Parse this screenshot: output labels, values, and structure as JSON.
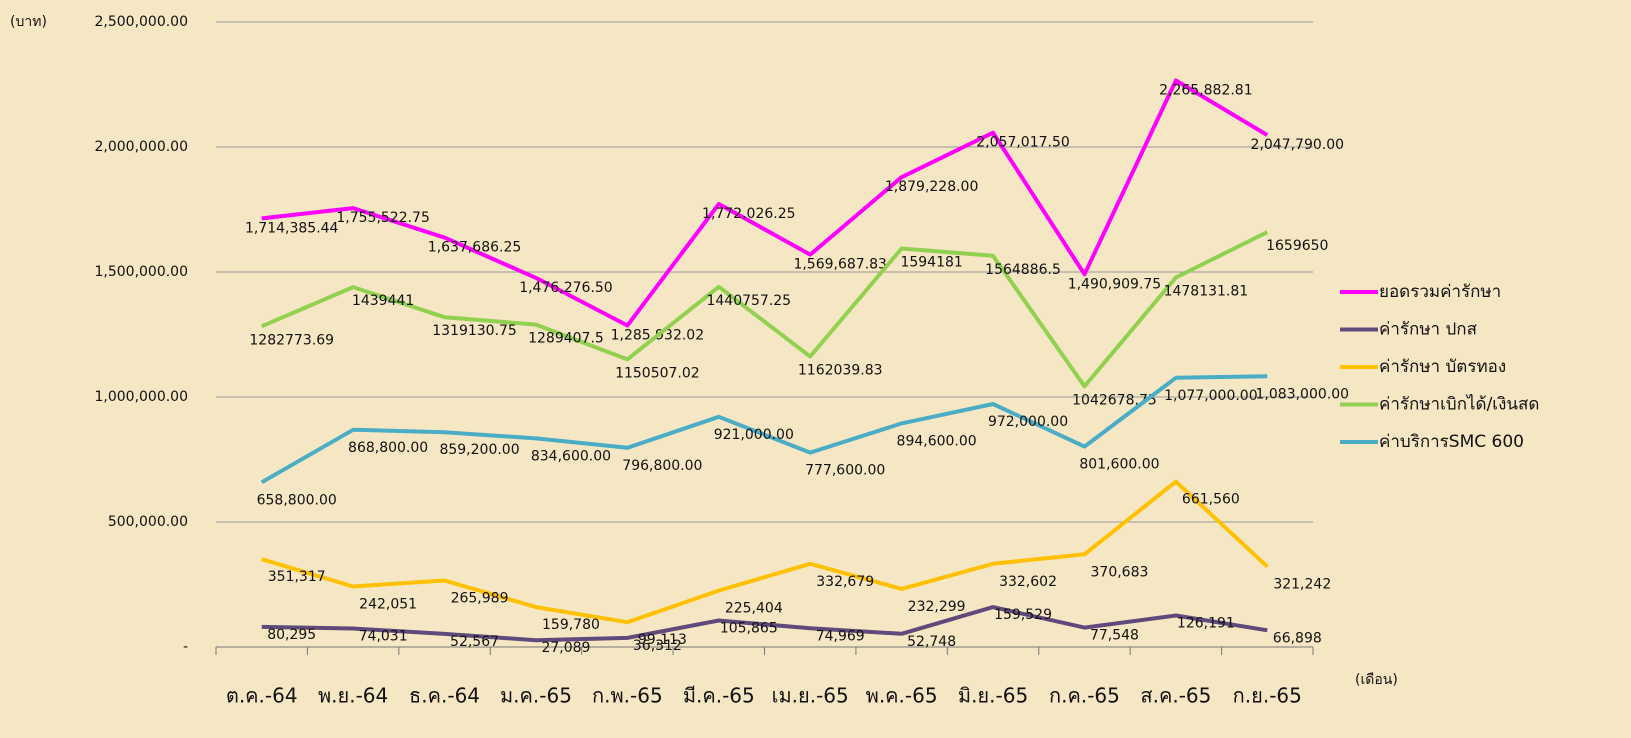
{
  "chart_data": {
    "type": "line",
    "y_axis_label": "(บาท)",
    "x_axis_label": "(เดือน)",
    "categories": [
      "ต.ค.-64",
      "พ.ย.-64",
      "ธ.ค.-64",
      "ม.ค.-65",
      "ก.พ.-65",
      "มี.ค.-65",
      "เม.ย.-65",
      "พ.ค.-65",
      "มิ.ย.-65",
      "ก.ค.-65",
      "ส.ค.-65",
      "ก.ย.-65"
    ],
    "ylim": [
      0,
      2500000
    ],
    "yticks": [
      {
        "value": 0,
        "label": "-"
      },
      {
        "value": 500000,
        "label": "500,000.00"
      },
      {
        "value": 1000000,
        "label": "1,000,000.00"
      },
      {
        "value": 1500000,
        "label": "1,500,000.00"
      },
      {
        "value": 2000000,
        "label": "2,000,000.00"
      },
      {
        "value": 2500000,
        "label": "2,500,000.00"
      }
    ],
    "grid": true,
    "legend": "right",
    "series": [
      {
        "name": "ยอดรวมค่ารักษา",
        "color": "#ff00ff",
        "values": [
          1714385.44,
          1755522.75,
          1637686.25,
          1476276.5,
          1285932.02,
          1772026.25,
          1569687.83,
          1879228,
          2057017.5,
          1490909.75,
          2265882.81,
          2047790
        ],
        "value_labels": [
          "1,714,385.44",
          "1,755,522.75",
          "1,637,686.25",
          "1,476,276.50",
          "1,285,932.02",
          "1,772,026.25",
          "1,569,687.83",
          "1,879,228.00",
          "2,057,017.50",
          "1,490,909.75",
          "2,265,882.81",
          "2,047,790.00"
        ]
      },
      {
        "name": "ค่ารักษา ปกส",
        "color": "#604a7b",
        "values": [
          80295,
          74031,
          52567,
          27089,
          36312,
          105865,
          74969,
          52748,
          159529,
          77548,
          126191,
          66898
        ],
        "value_labels": [
          "80,295",
          "74,031",
          "52,567",
          "27,089",
          "36,312",
          "105,865",
          "74,969",
          "52,748",
          "159,529",
          "77,548",
          "126,191",
          "66,898"
        ]
      },
      {
        "name": "ค่ารักษา บัตรทอง",
        "color": "#ffc000",
        "values": [
          351317,
          242051,
          265989,
          159780,
          99113,
          225404,
          332679,
          232299,
          332602,
          370683,
          661560,
          321242
        ],
        "value_labels": [
          "351,317",
          "242,051",
          "265,989",
          "159,780",
          "99,113",
          "225,404",
          "332,679",
          "232,299",
          "332,602",
          "370,683",
          "661,560",
          "321,242"
        ]
      },
      {
        "name": "ค่ารักษาเบิกได้/เงินสด",
        "color": "#92d050",
        "values": [
          1282773.69,
          1439441,
          1319130.75,
          1289407.5,
          1150507.02,
          1440757.25,
          1162039.83,
          1594181,
          1564886.5,
          1042678.75,
          1478131.81,
          1659650
        ]
      },
      {
        "name": "ค่าบริการSMC 600",
        "color": "#4bacc6",
        "values": [
          658800,
          868800,
          859200,
          834600,
          796800,
          921000,
          777600,
          894600,
          972000,
          801600,
          1077000,
          1083000
        ],
        "value_labels": [
          "658,800.00",
          "868,800.00",
          "859,200.00",
          "834,600.00",
          "796,800.00",
          "921,000.00",
          "777,600.00",
          "894,600.00",
          "972,000.00",
          "801,600.00",
          "1,077,000.00",
          "1,083,000.00"
        ]
      }
    ]
  }
}
